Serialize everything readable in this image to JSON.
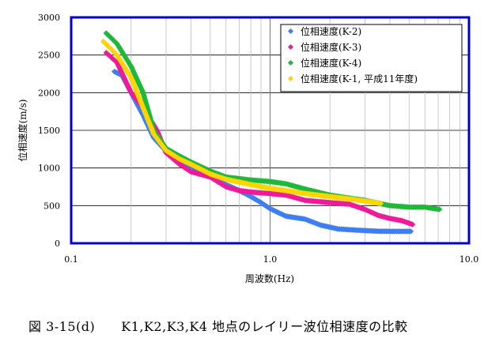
{
  "caption": "図 3-15(d)　　K1,K2,K3,K4 地点のレイリー波位相速度の比較",
  "chart_data": {
    "type": "scatter",
    "xlabel": "周波数(Hz)",
    "ylabel": "位相速度(m/s)",
    "xscale": "log",
    "xlim": [
      0.1,
      10
    ],
    "ylim": [
      0,
      3000
    ],
    "xticks": [
      0.1,
      1,
      10
    ],
    "xtick_labels": [
      "0.1",
      "1.0",
      "10.0"
    ],
    "yticks": [
      0,
      500,
      1000,
      1500,
      2000,
      2500,
      3000
    ],
    "ytick_labels": [
      "0",
      "500",
      "1000",
      "1500",
      "2000",
      "2500",
      "3000"
    ],
    "grid": true,
    "legend_position": "top-right",
    "series": [
      {
        "name": "位相速度(K-2)",
        "color": "#3d7ff0",
        "points": [
          [
            0.165,
            2280
          ],
          [
            0.18,
            2230
          ],
          [
            0.2,
            2000
          ],
          [
            0.23,
            1700
          ],
          [
            0.26,
            1400
          ],
          [
            0.3,
            1220
          ],
          [
            0.35,
            1100
          ],
          [
            0.4,
            1020
          ],
          [
            0.5,
            900
          ],
          [
            0.6,
            780
          ],
          [
            0.7,
            700
          ],
          [
            0.8,
            620
          ],
          [
            0.9,
            540
          ],
          [
            1.0,
            460
          ],
          [
            1.2,
            360
          ],
          [
            1.5,
            320
          ],
          [
            1.8,
            240
          ],
          [
            2.2,
            190
          ],
          [
            2.7,
            175
          ],
          [
            3.5,
            160
          ],
          [
            4.2,
            158
          ],
          [
            5.1,
            158
          ]
        ]
      },
      {
        "name": "位相速度(K-3)",
        "color": "#ee1a9a",
        "points": [
          [
            0.15,
            2530
          ],
          [
            0.17,
            2400
          ],
          [
            0.2,
            2000
          ],
          [
            0.23,
            1800
          ],
          [
            0.27,
            1500
          ],
          [
            0.3,
            1200
          ],
          [
            0.35,
            1050
          ],
          [
            0.4,
            950
          ],
          [
            0.5,
            880
          ],
          [
            0.6,
            750
          ],
          [
            0.7,
            700
          ],
          [
            0.8,
            680
          ],
          [
            1.0,
            660
          ],
          [
            1.2,
            640
          ],
          [
            1.5,
            570
          ],
          [
            2.0,
            540
          ],
          [
            2.5,
            520
          ],
          [
            3.0,
            450
          ],
          [
            3.5,
            370
          ],
          [
            4.0,
            330
          ],
          [
            4.6,
            300
          ],
          [
            5.2,
            250
          ]
        ]
      },
      {
        "name": "位相速度(K-4)",
        "color": "#1fb83a",
        "points": [
          [
            0.15,
            2790
          ],
          [
            0.17,
            2650
          ],
          [
            0.2,
            2350
          ],
          [
            0.23,
            2000
          ],
          [
            0.26,
            1500
          ],
          [
            0.3,
            1260
          ],
          [
            0.35,
            1160
          ],
          [
            0.4,
            1080
          ],
          [
            0.5,
            960
          ],
          [
            0.6,
            880
          ],
          [
            0.8,
            840
          ],
          [
            1.0,
            820
          ],
          [
            1.2,
            790
          ],
          [
            1.5,
            720
          ],
          [
            2.0,
            640
          ],
          [
            2.5,
            600
          ],
          [
            3.0,
            570
          ],
          [
            4.0,
            500
          ],
          [
            5.0,
            480
          ],
          [
            6.0,
            480
          ],
          [
            7.1,
            450
          ]
        ]
      },
      {
        "name": "位相速度(K-1, 平成11年度)",
        "color": "#ffd500",
        "points": [
          [
            0.145,
            2680
          ],
          [
            0.17,
            2500
          ],
          [
            0.2,
            2200
          ],
          [
            0.23,
            1800
          ],
          [
            0.26,
            1450
          ],
          [
            0.3,
            1230
          ],
          [
            0.35,
            1120
          ],
          [
            0.4,
            1050
          ],
          [
            0.5,
            920
          ],
          [
            0.6,
            850
          ],
          [
            0.8,
            780
          ],
          [
            1.0,
            730
          ],
          [
            1.2,
            700
          ],
          [
            1.5,
            660
          ],
          [
            2.0,
            620
          ],
          [
            2.5,
            590
          ],
          [
            3.0,
            560
          ],
          [
            3.6,
            530
          ]
        ]
      }
    ]
  }
}
